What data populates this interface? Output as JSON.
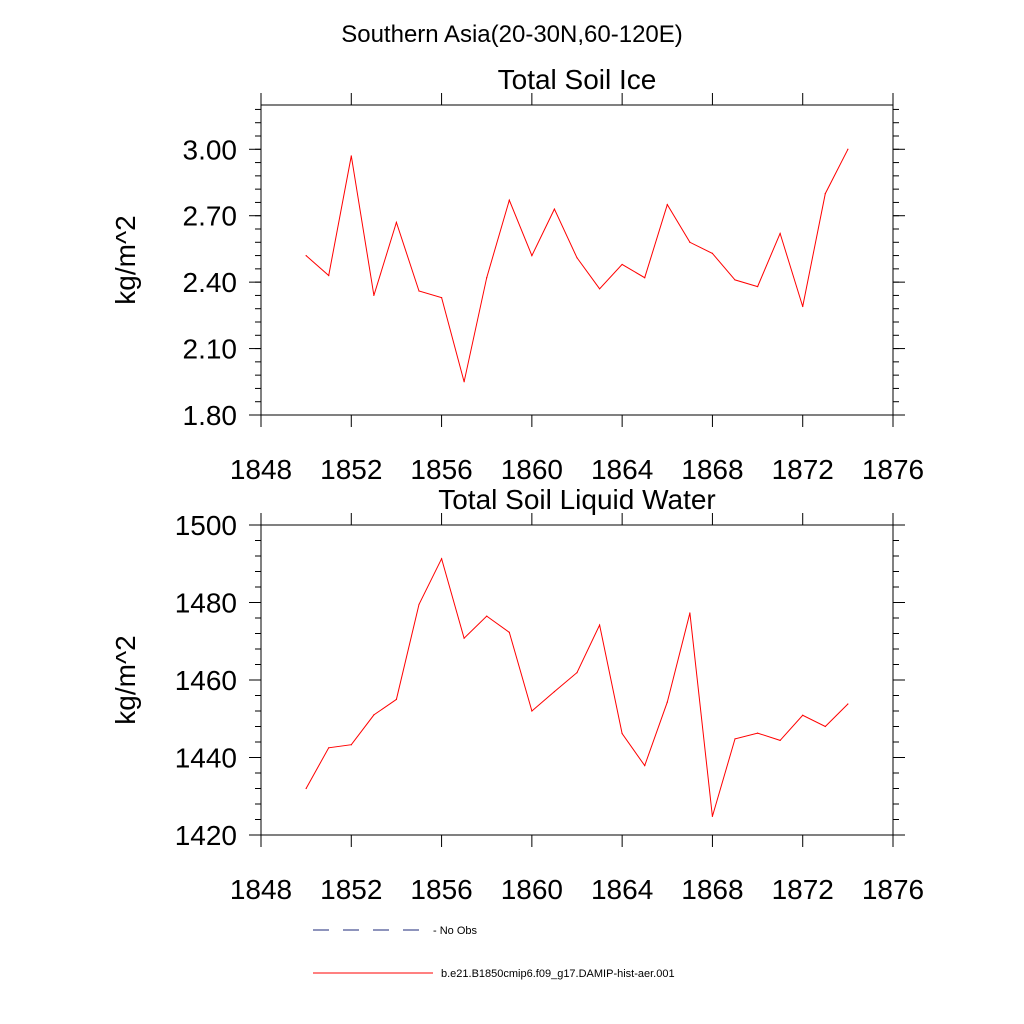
{
  "figure": {
    "suptitle": "Southern Asia(20-30N,60-120E)"
  },
  "legend": {
    "obs_label": "- No Obs",
    "model_label": "b.e21.B1850cmip6.f09_g17.DAMIP-hist-aer.001",
    "obs_color": "#1e2a7a",
    "model_color": "#ff0000"
  },
  "chart_data": [
    {
      "type": "line",
      "title": "Total Soil Ice",
      "xlabel": "",
      "ylabel": "kg/m^2",
      "xlim": [
        1848,
        1876
      ],
      "ylim": [
        1.8,
        3.2
      ],
      "xticks": [
        1848,
        1852,
        1856,
        1860,
        1864,
        1868,
        1872,
        1876
      ],
      "xtick_labels": [
        "1848",
        "1852",
        "1856",
        "1860",
        "1864",
        "1868",
        "1872",
        "1876"
      ],
      "yticks": [
        1.8,
        2.1,
        2.4,
        2.7,
        3.0
      ],
      "ytick_labels": [
        "1.80",
        "2.10",
        "2.40",
        "2.70",
        "3.00"
      ],
      "grid": false,
      "series": [
        {
          "name": "b.e21.B1850cmip6.f09_g17.DAMIP-hist-aer.001",
          "color": "#ff0000",
          "x": [
            1850,
            1851,
            1852,
            1853,
            1854,
            1855,
            1856,
            1857,
            1858,
            1859,
            1860,
            1861,
            1862,
            1863,
            1864,
            1865,
            1866,
            1867,
            1868,
            1869,
            1870,
            1871,
            1872,
            1873,
            1874
          ],
          "y": [
            2.52,
            2.43,
            2.97,
            2.34,
            2.67,
            2.36,
            2.33,
            1.95,
            2.42,
            2.77,
            2.52,
            2.73,
            2.51,
            2.37,
            2.48,
            2.42,
            2.75,
            2.58,
            2.53,
            2.41,
            2.38,
            2.62,
            2.29,
            2.8,
            3.0
          ]
        }
      ]
    },
    {
      "type": "line",
      "title": "Total Soil Liquid Water",
      "xlabel": "",
      "ylabel": "kg/m^2",
      "xlim": [
        1848,
        1876
      ],
      "ylim": [
        1420,
        1500
      ],
      "xticks": [
        1848,
        1852,
        1856,
        1860,
        1864,
        1868,
        1872,
        1876
      ],
      "xtick_labels": [
        "1848",
        "1852",
        "1856",
        "1860",
        "1864",
        "1868",
        "1872",
        "1876"
      ],
      "yticks": [
        1420,
        1440,
        1460,
        1480,
        1500
      ],
      "ytick_labels": [
        "1420",
        "1440",
        "1460",
        "1480",
        "1500"
      ],
      "grid": false,
      "series": [
        {
          "name": "b.e21.B1850cmip6.f09_g17.DAMIP-hist-aer.001",
          "color": "#ff0000",
          "x": [
            1850,
            1851,
            1852,
            1853,
            1854,
            1855,
            1856,
            1857,
            1858,
            1859,
            1860,
            1861,
            1862,
            1863,
            1864,
            1865,
            1866,
            1867,
            1868,
            1869,
            1870,
            1871,
            1872,
            1873,
            1874
          ],
          "y": [
            1432,
            1442.5,
            1443.3,
            1451,
            1455,
            1479.5,
            1491.3,
            1470.8,
            1476.5,
            1472.3,
            1452,
            1457,
            1461.9,
            1474.2,
            1446.2,
            1437.9,
            1454.3,
            1477.3,
            1424.8,
            1444.8,
            1446.3,
            1444.4,
            1450.9,
            1448,
            1453.8
          ]
        }
      ]
    }
  ]
}
